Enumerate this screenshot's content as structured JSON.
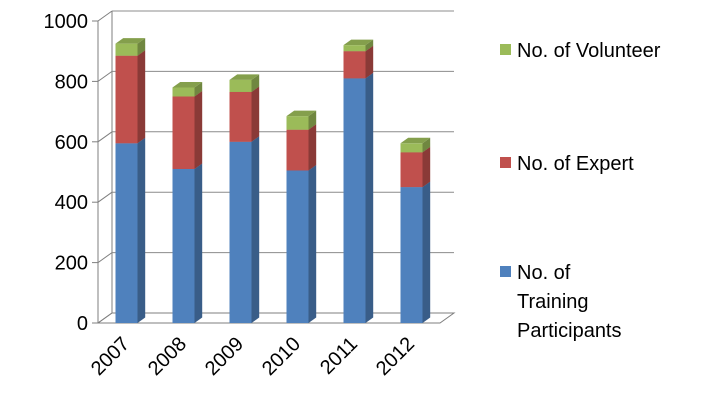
{
  "chart_data": {
    "type": "bar",
    "stacked": true,
    "three_d": true,
    "categories": [
      "2007",
      "2008",
      "2009",
      "2010",
      "2011",
      "2012"
    ],
    "series": [
      {
        "name": "No. of Training Participants",
        "color": "#4F81BD",
        "values": [
          595,
          510,
          600,
          505,
          810,
          450
        ]
      },
      {
        "name": "No. of Expert",
        "color": "#C0504D",
        "values": [
          290,
          240,
          165,
          135,
          90,
          115
        ]
      },
      {
        "name": "No. of Volunteer",
        "color": "#9BBB59",
        "values": [
          40,
          30,
          40,
          45,
          20,
          30
        ]
      }
    ],
    "y_ticks": [
      "0",
      "200",
      "400",
      "600",
      "800",
      "1000"
    ],
    "ylim": [
      0,
      1000
    ],
    "grid": true,
    "legend_position": "right",
    "legend": [
      {
        "lines": [
          "No. of Volunteer"
        ],
        "color": "#9BBB59"
      },
      {
        "lines": [
          "No. of Expert"
        ],
        "color": "#C0504D"
      },
      {
        "lines": [
          "No. of",
          "Training",
          "Participants"
        ],
        "color": "#4F81BD"
      }
    ]
  }
}
